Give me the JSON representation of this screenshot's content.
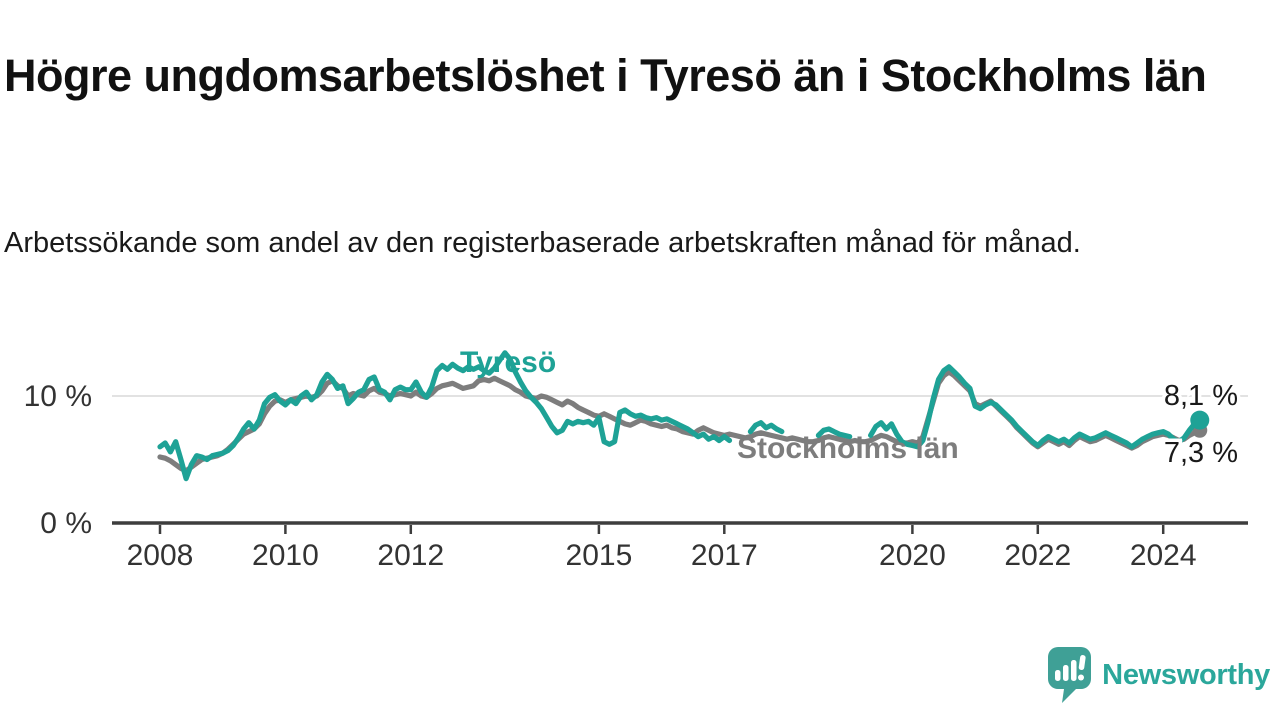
{
  "header": {
    "title": "Högre ungdomsarbetslöshet i Tyresö än i Stockholms län",
    "subtitle": "Arbetssökande som andel av den registerbaserade arbetskraften månad för månad."
  },
  "footer": {
    "brand": "Newsworthy",
    "logo_icon": "bar-chart-speech-bubble-icon"
  },
  "colors": {
    "tyreso_line": "#1ea296",
    "stockholm_line": "#7d7d7d",
    "gridline": "#d8d8d8",
    "axis": "#3d3d3d",
    "tick_text": "#333333",
    "value_text": "#1a1a1a",
    "brand_teal": "#2ba79b",
    "logo_bubble": "#3fa096"
  },
  "chart_data": {
    "type": "line",
    "title": "Högre ungdomsarbetslöshet i Tyresö än i Stockholms län",
    "subtitle": "Arbetssökande som andel av den registerbaserade arbetskraften månad för månad.",
    "grid": "horizontal-only",
    "legend_position": "inline-labels",
    "x_axis": {
      "start_year": 2008,
      "points_per_year": 12,
      "end_label_period": "2024",
      "tick_years": [
        2008,
        2010,
        2012,
        2015,
        2017,
        2020,
        2022,
        2024
      ]
    },
    "y_axis": {
      "unit": "%",
      "range": [
        0,
        14
      ],
      "ticks": [
        {
          "value": 0,
          "label": "0 %"
        },
        {
          "value": 10,
          "label": "10 %"
        }
      ]
    },
    "series": [
      {
        "name": "Tyresö",
        "color": "#1ea296",
        "end_value": 8.1,
        "end_label": "8,1 %",
        "values": [
          6.0,
          6.3,
          5.6,
          6.4,
          5.0,
          3.5,
          4.6,
          5.3,
          5.2,
          5.0,
          5.3,
          5.4,
          5.5,
          5.7,
          6.1,
          6.7,
          7.4,
          7.9,
          7.4,
          8.1,
          9.4,
          9.9,
          10.1,
          9.6,
          9.3,
          9.7,
          9.4,
          10.0,
          10.3,
          9.7,
          10.1,
          11.1,
          11.7,
          11.3,
          10.6,
          10.8,
          9.4,
          9.8,
          10.3,
          10.5,
          11.3,
          11.5,
          10.5,
          10.3,
          9.7,
          10.5,
          10.7,
          10.5,
          10.5,
          11.1,
          10.3,
          9.9,
          10.7,
          12.0,
          12.4,
          12.1,
          12.5,
          12.2,
          12.0,
          12.3,
          12.1,
          12.3,
          12.0,
          11.8,
          12.2,
          12.8,
          13.4,
          12.9,
          11.9,
          11.1,
          10.4,
          9.9,
          9.5,
          9.0,
          8.3,
          7.6,
          7.1,
          7.3,
          8.0,
          7.8,
          8.0,
          7.9,
          8.0,
          7.7,
          8.3,
          6.4,
          6.2,
          6.4,
          8.7,
          8.9,
          8.6,
          8.4,
          8.5,
          8.3,
          8.2,
          8.3,
          8.1,
          8.2,
          8.0,
          7.8,
          7.6,
          7.4,
          7.1,
          6.8,
          7.0,
          6.6,
          6.8,
          6.5,
          6.8,
          6.5,
          null,
          null,
          null,
          7.2,
          7.7,
          7.9,
          7.5,
          7.7,
          7.4,
          7.2,
          null,
          null,
          null,
          null,
          null,
          null,
          6.9,
          7.3,
          7.4,
          7.2,
          7.0,
          6.9,
          6.8,
          null,
          null,
          null,
          6.9,
          7.6,
          7.9,
          7.4,
          7.8,
          7.0,
          6.4,
          6.2,
          6.1,
          6.0,
          6.5,
          8.0,
          9.8,
          11.3,
          12.0,
          12.3,
          11.9,
          11.5,
          11.0,
          10.6,
          9.2,
          9.0,
          9.3,
          9.5,
          9.3,
          8.9,
          8.5,
          8.1,
          7.6,
          7.2,
          6.8,
          6.4,
          6.1,
          6.5,
          6.8,
          6.6,
          6.4,
          6.6,
          6.3,
          6.7,
          7.0,
          6.8,
          6.6,
          6.7,
          6.9,
          7.1,
          6.9,
          6.7,
          6.5,
          6.3,
          6.0,
          6.3,
          6.6,
          6.8,
          7.0,
          7.1,
          7.2,
          7.0,
          6.6,
          6.4,
          6.7,
          7.3,
          7.8,
          8.1
        ]
      },
      {
        "name": "Stockholms län",
        "color": "#7d7d7d",
        "end_value": 7.3,
        "end_label": "7,3 %",
        "values": [
          5.2,
          5.1,
          4.9,
          4.6,
          4.3,
          4.1,
          4.4,
          4.7,
          5.0,
          5.1,
          5.2,
          5.3,
          5.5,
          5.8,
          6.2,
          6.6,
          7.0,
          7.2,
          7.4,
          7.8,
          8.6,
          9.2,
          9.6,
          9.7,
          9.5,
          9.7,
          9.8,
          9.9,
          10.0,
          9.9,
          10.0,
          10.4,
          11.0,
          11.2,
          10.8,
          10.6,
          10.0,
          10.2,
          10.1,
          10.0,
          10.4,
          10.6,
          10.3,
          10.2,
          10.0,
          10.1,
          10.2,
          10.1,
          10.0,
          10.3,
          10.0,
          9.9,
          10.2,
          10.6,
          10.8,
          10.9,
          11.0,
          10.8,
          10.6,
          10.7,
          10.8,
          11.2,
          11.3,
          11.2,
          11.4,
          11.2,
          11.0,
          10.8,
          10.5,
          10.3,
          10.0,
          9.9,
          9.8,
          10.0,
          9.9,
          9.7,
          9.5,
          9.3,
          9.6,
          9.4,
          9.1,
          8.9,
          8.7,
          8.5,
          8.4,
          8.6,
          8.4,
          8.2,
          8.0,
          7.8,
          7.7,
          7.9,
          8.1,
          8.0,
          7.8,
          7.7,
          7.6,
          7.7,
          7.5,
          7.4,
          7.2,
          7.1,
          7.0,
          7.3,
          7.5,
          7.3,
          7.1,
          7.0,
          6.9,
          7.0,
          6.9,
          6.8,
          6.7,
          6.8,
          7.0,
          7.1,
          7.0,
          6.9,
          6.8,
          6.7,
          6.6,
          6.7,
          6.6,
          6.5,
          6.4,
          6.4,
          6.5,
          6.7,
          6.8,
          6.7,
          6.6,
          6.5,
          6.4,
          6.5,
          6.4,
          6.4,
          6.5,
          6.7,
          6.9,
          6.8,
          6.6,
          6.4,
          6.3,
          6.3,
          6.4,
          6.3,
          6.8,
          8.2,
          9.6,
          11.0,
          11.6,
          11.9,
          11.6,
          11.2,
          10.8,
          10.4,
          9.4,
          9.2,
          9.4,
          9.6,
          9.2,
          8.8,
          8.4,
          8.0,
          7.5,
          7.1,
          6.7,
          6.3,
          6.0,
          6.3,
          6.6,
          6.4,
          6.2,
          6.4,
          6.1,
          6.5,
          6.8,
          6.6,
          6.4,
          6.5,
          6.7,
          6.9,
          6.7,
          6.5,
          6.3,
          6.1,
          5.9,
          6.1,
          6.4,
          6.6,
          6.8,
          6.9,
          7.0,
          6.9,
          6.7,
          6.5,
          6.6,
          6.9,
          7.1,
          7.3
        ]
      }
    ]
  }
}
